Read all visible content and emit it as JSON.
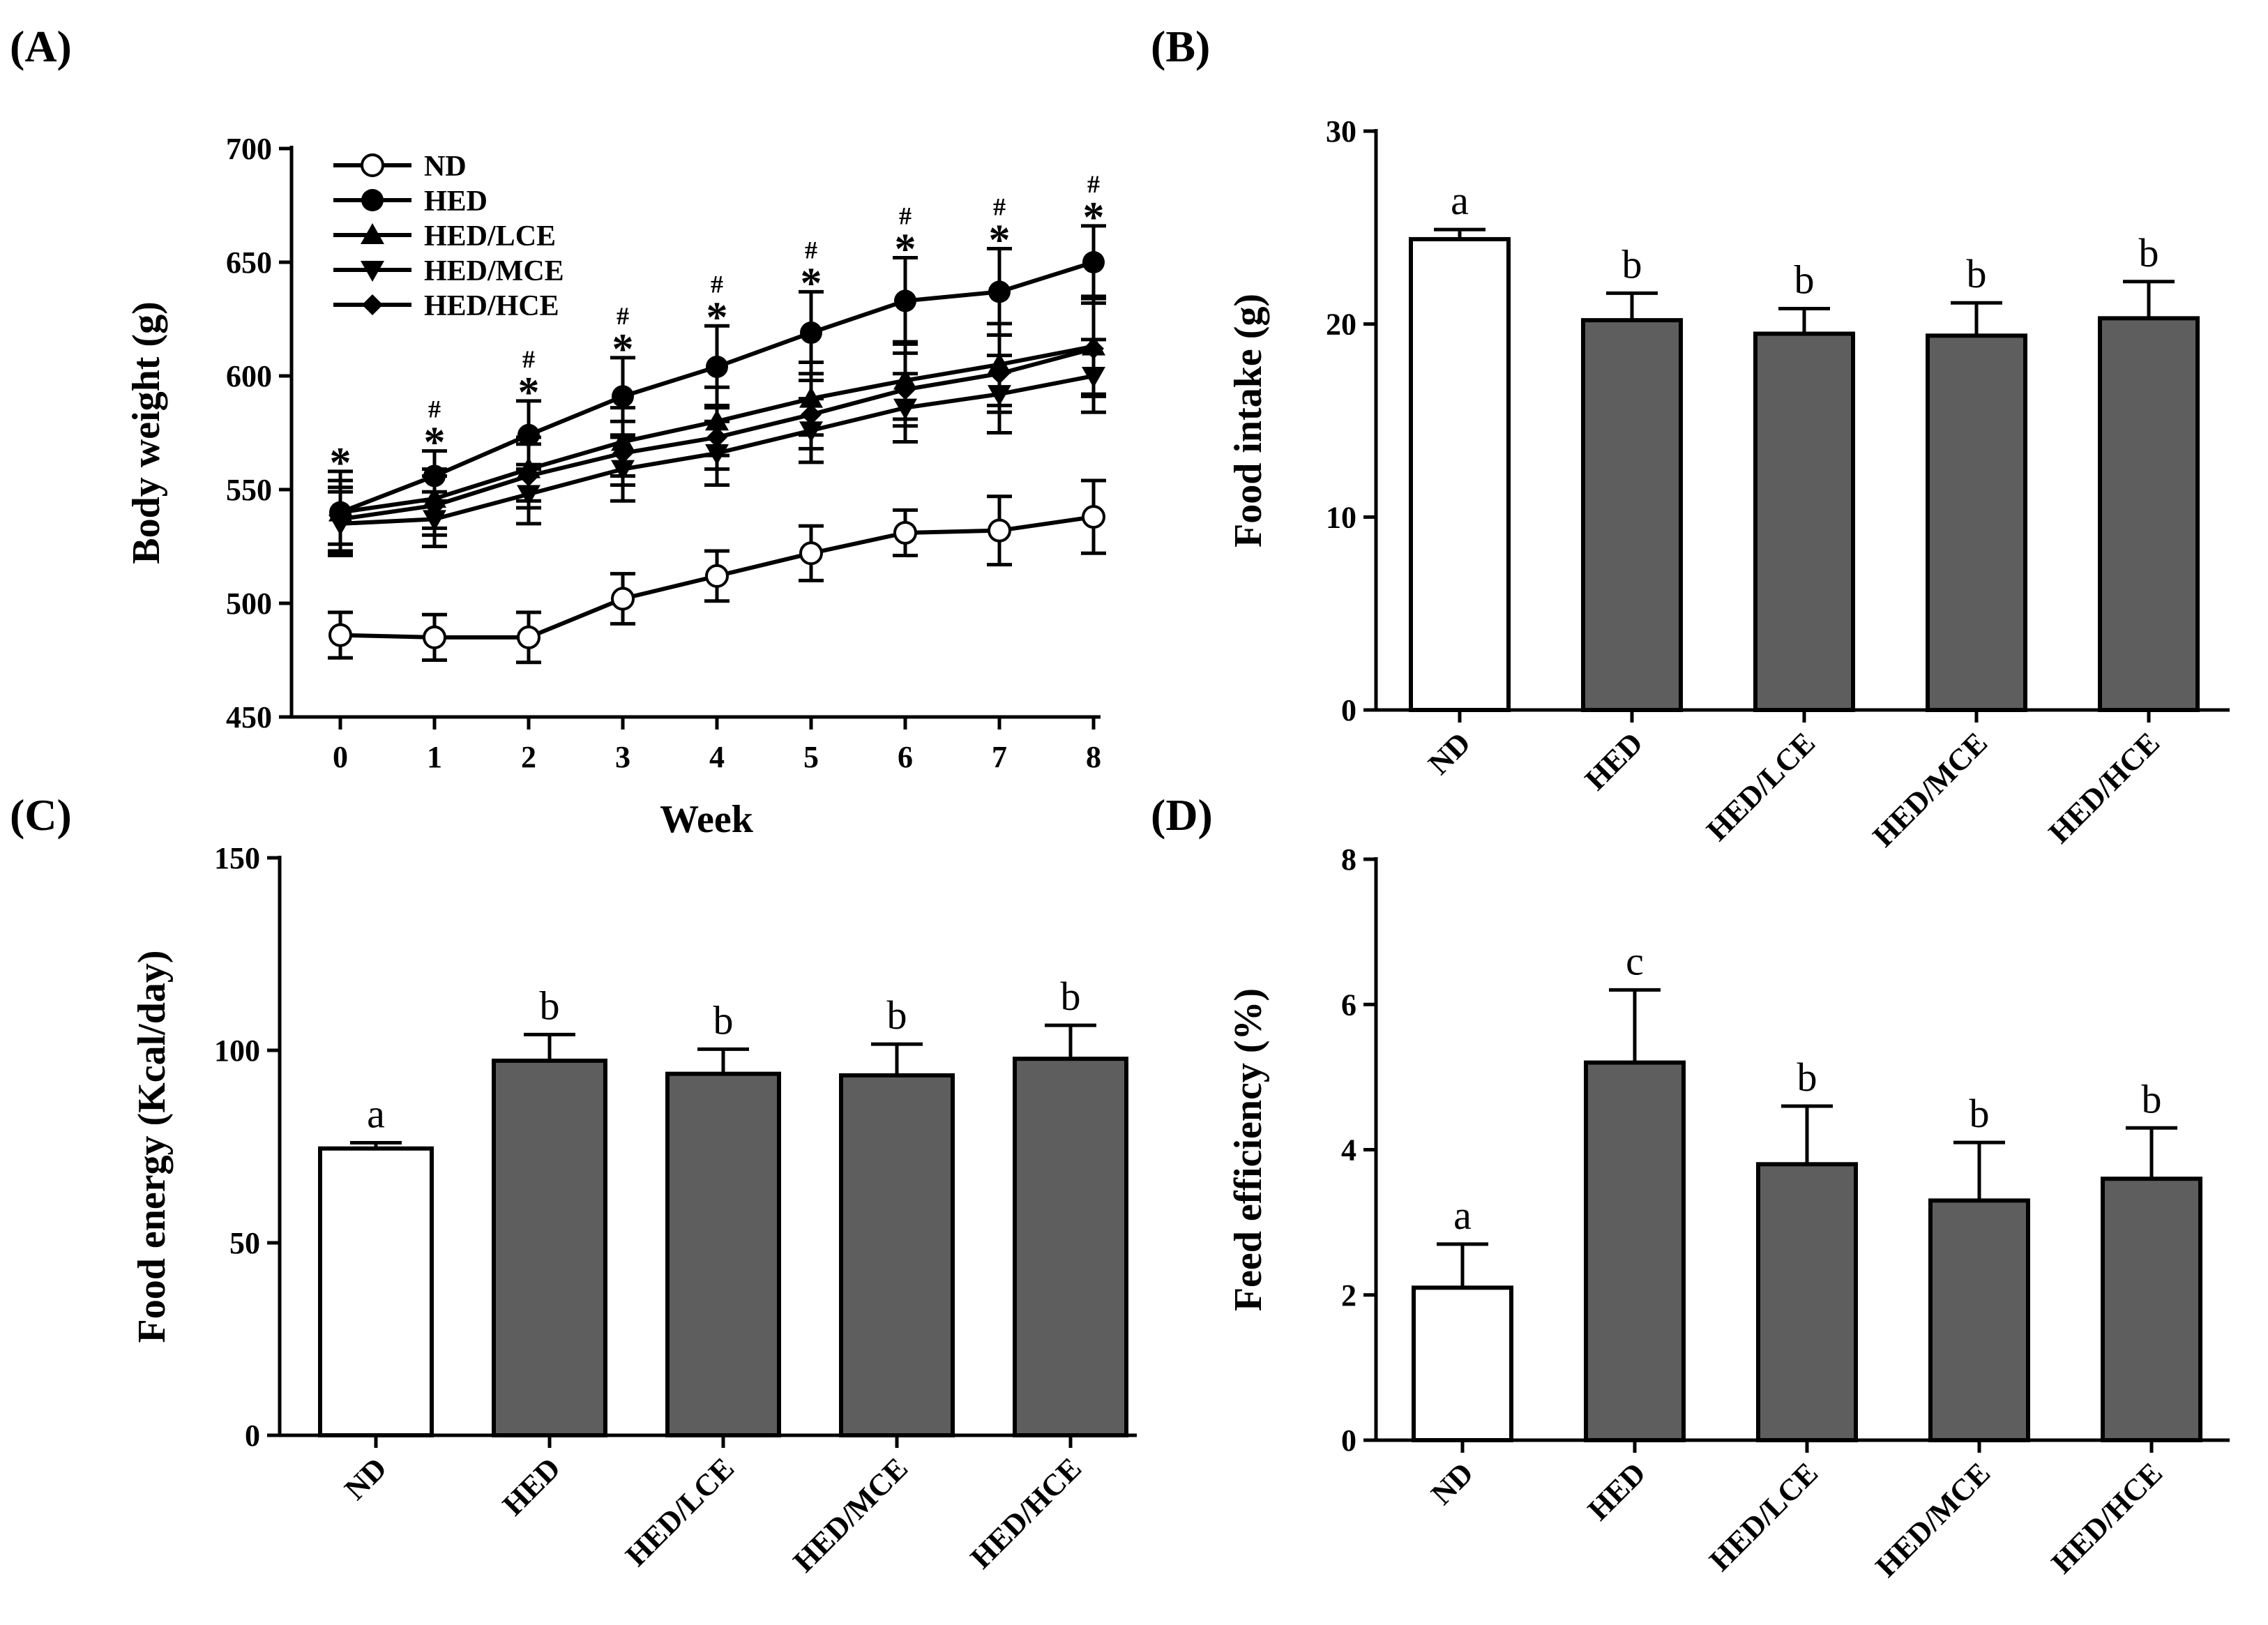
{
  "colors": {
    "ink": "#000000",
    "bar_fill": "#5e5e5e",
    "open_fill": "#ffffff"
  },
  "chart_data": [
    {
      "id": "A",
      "panel_label": "(A)",
      "type": "line",
      "xlabel": "Week",
      "ylabel": "Body weight (g)",
      "x": [
        0,
        1,
        2,
        3,
        4,
        5,
        6,
        7,
        8
      ],
      "xticks": [
        "0",
        "1",
        "2",
        "3",
        "4",
        "5",
        "6",
        "7",
        "8"
      ],
      "ylim": [
        450,
        700
      ],
      "yticks": [
        450,
        500,
        550,
        600,
        650,
        700
      ],
      "yticklabels": [
        "450",
        "500",
        "550",
        "600",
        "650",
        "700"
      ],
      "series": [
        {
          "name": "ND",
          "marker": "circle-open",
          "values": [
            486,
            485,
            485,
            502,
            512,
            522,
            531,
            532,
            538
          ],
          "errors": [
            10,
            10,
            11,
            11,
            11,
            12,
            10,
            15,
            16
          ]
        },
        {
          "name": "HED",
          "marker": "circle",
          "values": [
            540,
            556,
            574,
            591,
            604,
            619,
            633,
            637,
            650
          ],
          "errors": [
            18,
            11,
            15,
            17,
            18,
            18,
            19,
            19,
            16
          ]
        },
        {
          "name": "HED/LCE",
          "marker": "triangle-up",
          "values": [
            540,
            546,
            559,
            571,
            580,
            590,
            598,
            605,
            613
          ],
          "errors": [
            14,
            13,
            14,
            15,
            15,
            16,
            17,
            18,
            22
          ]
        },
        {
          "name": "HED/MCE",
          "marker": "triangle-down",
          "values": [
            535,
            537,
            548,
            559,
            566,
            576,
            586,
            592,
            600
          ],
          "errors": [
            14,
            12,
            13,
            14,
            14,
            14,
            15,
            17,
            16
          ]
        },
        {
          "name": "HED/HCE",
          "marker": "diamond",
          "values": [
            537,
            543,
            556,
            566,
            573,
            583,
            594,
            601,
            612
          ],
          "errors": [
            14,
            13,
            14,
            14,
            14,
            15,
            16,
            17,
            20
          ]
        }
      ],
      "annotations": [
        {
          "x": 0,
          "symbols": [
            "*"
          ]
        },
        {
          "x": 1,
          "symbols": [
            "#",
            "*"
          ]
        },
        {
          "x": 2,
          "symbols": [
            "#",
            "*"
          ]
        },
        {
          "x": 3,
          "symbols": [
            "#",
            "*"
          ]
        },
        {
          "x": 4,
          "symbols": [
            "#",
            "*"
          ]
        },
        {
          "x": 5,
          "symbols": [
            "#",
            "*"
          ]
        },
        {
          "x": 6,
          "symbols": [
            "#",
            "*"
          ]
        },
        {
          "x": 7,
          "symbols": [
            "#",
            "*"
          ]
        },
        {
          "x": 8,
          "symbols": [
            "#",
            "*"
          ]
        }
      ]
    },
    {
      "id": "B",
      "panel_label": "(B)",
      "type": "bar",
      "ylabel": "Food intake (g)",
      "categories": [
        "ND",
        "HED",
        "HED/LCE",
        "HED/MCE",
        "HED/HCE"
      ],
      "values": [
        24.4,
        20.2,
        19.5,
        19.4,
        20.3
      ],
      "errors": [
        0.5,
        1.4,
        1.3,
        1.7,
        1.9
      ],
      "letters": [
        "a",
        "b",
        "b",
        "b",
        "b"
      ],
      "open_bars": [
        true,
        false,
        false,
        false,
        false
      ],
      "ylim": [
        0,
        30
      ],
      "yticks": [
        0,
        10,
        20,
        30
      ],
      "yticklabels": [
        "0",
        "10",
        "20",
        "30"
      ]
    },
    {
      "id": "C",
      "panel_label": "(C)",
      "type": "bar",
      "ylabel": "Food energy (Kcal/day)",
      "categories": [
        "ND",
        "HED",
        "HED/LCE",
        "HED/MCE",
        "HED/HCE"
      ],
      "values": [
        74.5,
        97.3,
        93.9,
        93.5,
        97.8
      ],
      "errors": [
        1.5,
        6.8,
        6.4,
        8.1,
        8.7
      ],
      "letters": [
        "a",
        "b",
        "b",
        "b",
        "b"
      ],
      "open_bars": [
        true,
        false,
        false,
        false,
        false
      ],
      "ylim": [
        0,
        150
      ],
      "yticks": [
        0,
        50,
        100,
        150
      ],
      "yticklabels": [
        "0",
        "50",
        "100",
        "150"
      ]
    },
    {
      "id": "D",
      "panel_label": "(D)",
      "type": "bar",
      "ylabel": "Feed efficiency (%)",
      "categories": [
        "ND",
        "HED",
        "HED/LCE",
        "HED/MCE",
        "HED/HCE"
      ],
      "values": [
        2.1,
        5.2,
        3.8,
        3.3,
        3.6
      ],
      "errors": [
        0.6,
        1.0,
        0.8,
        0.8,
        0.7
      ],
      "letters": [
        "a",
        "c",
        "b",
        "b",
        "b"
      ],
      "open_bars": [
        true,
        false,
        false,
        false,
        false
      ],
      "ylim": [
        0,
        8
      ],
      "yticks": [
        0,
        2,
        4,
        6,
        8
      ],
      "yticklabels": [
        "0",
        "2",
        "4",
        "6",
        "8"
      ]
    }
  ]
}
